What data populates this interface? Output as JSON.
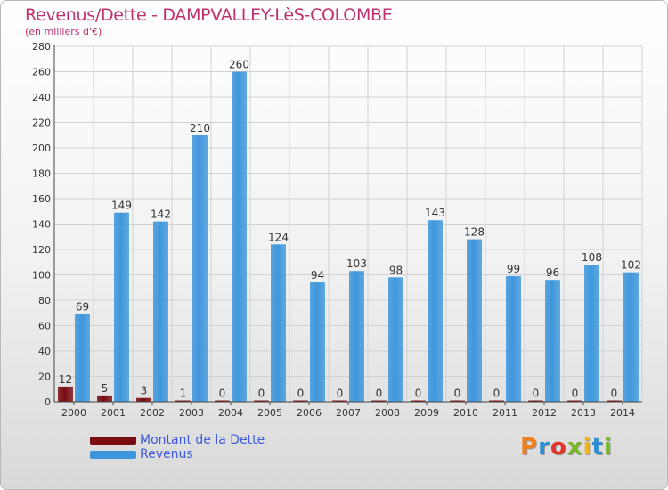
{
  "header": {
    "title": "Revenus/Dette - DAMPVALLEY-LèS-COLOMBE",
    "subtitle": "(en milliers d'€)"
  },
  "chart_data": {
    "type": "bar",
    "categories": [
      "2000",
      "2001",
      "2002",
      "2003",
      "2004",
      "2005",
      "2006",
      "2007",
      "2008",
      "2009",
      "2010",
      "2011",
      "2012",
      "2013",
      "2014"
    ],
    "series": [
      {
        "name": "Montant de la Dette",
        "color": "#7a0c12",
        "values": [
          12,
          5,
          3,
          1,
          0,
          0,
          0,
          0,
          0,
          0,
          0,
          0,
          0,
          0,
          0
        ]
      },
      {
        "name": "Revenus",
        "color": "#3e97dc",
        "values": [
          69,
          149,
          142,
          210,
          260,
          124,
          94,
          103,
          98,
          143,
          128,
          99,
          96,
          108,
          102
        ]
      }
    ],
    "ylim": [
      0,
      280
    ],
    "yticks": [
      0,
      20,
      40,
      60,
      80,
      100,
      120,
      140,
      160,
      180,
      200,
      220,
      240,
      260,
      280
    ],
    "grid": true,
    "legend_position": "bottom-left",
    "xlabel": "",
    "ylabel": ""
  },
  "legend": {
    "items": [
      {
        "label": "Montant de la Dette",
        "color": "#7a0c12"
      },
      {
        "label": "Revenus",
        "color": "#3e97dc"
      }
    ]
  },
  "logo": {
    "letters": [
      {
        "ch": "P",
        "color": "#f07f1c"
      },
      {
        "ch": "r",
        "color": "#2c8fd6"
      },
      {
        "ch": "o",
        "color": "#e2342a"
      },
      {
        "ch": "x",
        "color": "#7cb929"
      },
      {
        "ch": "i",
        "color": "#f0b41c"
      },
      {
        "ch": "t",
        "color": "#2c8fd6"
      },
      {
        "ch": "i",
        "color": "#7cb929"
      }
    ]
  }
}
